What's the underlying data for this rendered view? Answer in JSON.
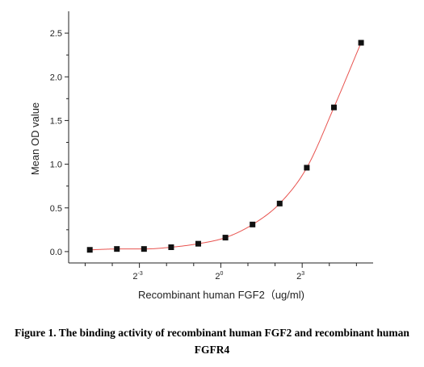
{
  "chart_data": {
    "type": "scatter",
    "xlabel": "Recombinant human FGF2（ug/ml)",
    "ylabel": "Mean OD value",
    "x_scale": "log2",
    "x_ticks": [
      {
        "value": 0.125,
        "base": "2",
        "exp": "-3"
      },
      {
        "value": 1,
        "base": "2",
        "exp": "0"
      },
      {
        "value": 8,
        "base": "2",
        "exp": "3"
      }
    ],
    "y_ticks": [
      "0.0",
      "0.5",
      "1.0",
      "1.5",
      "2.0",
      "2.5"
    ],
    "ylim": [
      -0.13,
      2.75
    ],
    "xlim": [
      0.0205,
      49
    ],
    "grid": false,
    "series": [
      {
        "x": [
          0.0352,
          0.0703,
          0.1406,
          0.2813,
          0.5625,
          1.125,
          2.25,
          4.5,
          9,
          18,
          36
        ],
        "y": [
          0.02,
          0.03,
          0.03,
          0.05,
          0.09,
          0.16,
          0.31,
          0.55,
          0.96,
          1.65,
          2.39
        ],
        "marker_color": "#111111",
        "fit_color": "#e8534f"
      }
    ]
  },
  "caption": {
    "line1": "Figure 1. The binding activity of recombinant human FGF2 and recombinant human",
    "line2": "FGFR4"
  }
}
